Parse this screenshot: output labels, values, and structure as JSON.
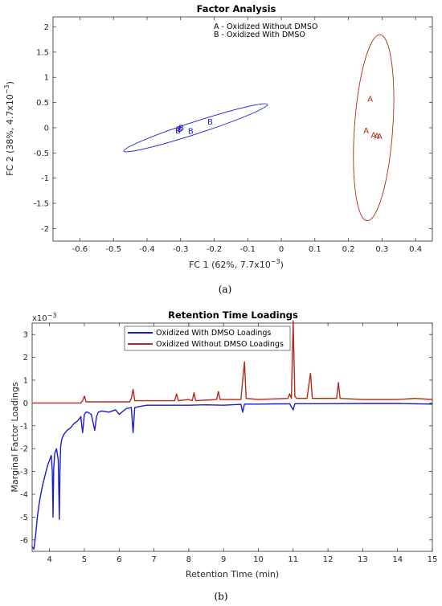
{
  "colors": {
    "series_a": "#b22a1c",
    "series_b": "#1a1ad6",
    "axis": "#262626"
  },
  "chart_data": [
    {
      "type": "scatter",
      "title": "Factor Analysis",
      "xlabel": "FC 1 (62%, 7.7x10",
      "xlabel_exp": "−3",
      "xlabel_end": ")",
      "ylabel": "FC 2 (38%, 4.7x10",
      "ylabel_exp": "−3",
      "ylabel_end": ")",
      "xlim": [
        -0.68,
        0.45
      ],
      "ylim": [
        -2.25,
        2.2
      ],
      "xticks": [
        "-0.6",
        "-0.5",
        "-0.4",
        "-0.3",
        "-0.2",
        "-0.1",
        "0",
        "0.1",
        "0.2",
        "0.3",
        "0.4"
      ],
      "xtick_values": [
        -0.6,
        -0.5,
        -0.4,
        -0.3,
        -0.2,
        -0.1,
        0,
        0.1,
        0.2,
        0.3,
        0.4
      ],
      "yticks": [
        "2",
        "1.5",
        "1",
        "0.5",
        "0",
        "-0.5",
        "-1",
        "-1.5",
        "-2"
      ],
      "ytick_values": [
        2,
        1.5,
        1,
        0.5,
        0,
        -0.5,
        -1,
        -1.5,
        -2
      ],
      "legend": [
        "A - Oxidized Without DMSO",
        "B - Oxidized With DMSO"
      ],
      "legend_placement": "top",
      "series": [
        {
          "name": "A - Oxidized Without DMSO",
          "marker": "A",
          "points": [
            [
              0.265,
              0.58
            ],
            [
              0.253,
              -0.05
            ],
            [
              0.275,
              -0.14
            ],
            [
              0.285,
              -0.15
            ],
            [
              0.293,
              -0.16
            ]
          ],
          "ellipse": {
            "center": [
              0.275,
              0.0
            ],
            "rx": 0.057,
            "ry": 1.85,
            "rotation_deg": -4
          }
        },
        {
          "name": "B - Oxidized With DMSO",
          "marker": "B",
          "points": [
            [
              -0.212,
              0.13
            ],
            [
              -0.298,
              0.01
            ],
            [
              -0.303,
              -0.02
            ],
            [
              -0.308,
              -0.05
            ],
            [
              -0.27,
              -0.06
            ]
          ],
          "ellipse": {
            "center": [
              -0.255,
              0.0
            ],
            "rx": 0.225,
            "ry": 0.22,
            "rotation_deg": 18
          }
        }
      ]
    },
    {
      "type": "line",
      "title": "Retention Time Loadings",
      "xlabel": "Retention Time (min)",
      "ylabel": "Marginal Factor Loadings",
      "exponent_label": "x10",
      "exponent_sup": "−3",
      "xlim": [
        3.5,
        15
      ],
      "ylim": [
        -6.5,
        3.5
      ],
      "xticks": [
        "4",
        "5",
        "6",
        "7",
        "8",
        "9",
        "10",
        "11",
        "12",
        "13",
        "14",
        "15"
      ],
      "xtick_values": [
        4,
        5,
        6,
        7,
        8,
        9,
        10,
        11,
        12,
        13,
        14,
        15
      ],
      "yticks": [
        "3",
        "2",
        "1",
        "0",
        "-1",
        "-2",
        "-3",
        "-4",
        "-5",
        "-6"
      ],
      "ytick_values": [
        3,
        2,
        1,
        0,
        -1,
        -2,
        -3,
        -4,
        -5,
        -6
      ],
      "legend": [
        "Oxidized With DMSO Loadings",
        "Oxidized Without DMSO Loadings"
      ],
      "legend_placement": "top",
      "series": [
        {
          "name": "Oxidized With DMSO Loadings",
          "x": [
            3.5,
            3.55,
            3.6,
            3.65,
            3.7,
            3.75,
            3.8,
            3.85,
            3.9,
            3.95,
            4.0,
            4.05,
            4.08,
            4.1,
            4.12,
            4.15,
            4.2,
            4.25,
            4.28,
            4.3,
            4.32,
            4.35,
            4.4,
            4.5,
            4.6,
            4.7,
            4.8,
            4.9,
            4.95,
            5.0,
            5.05,
            5.1,
            5.2,
            5.3,
            5.35,
            5.4,
            5.5,
            5.7,
            5.9,
            6.0,
            6.2,
            6.35,
            6.4,
            6.45,
            6.6,
            6.8,
            7.0,
            7.5,
            8.0,
            8.5,
            9.0,
            9.5,
            9.55,
            9.6,
            10.0,
            10.5,
            10.9,
            11.0,
            11.05,
            11.5,
            12.0,
            13.0,
            14.0,
            15.0
          ],
          "values": [
            -6.3,
            -6.4,
            -5.8,
            -5.0,
            -4.4,
            -4.0,
            -3.6,
            -3.3,
            -3.0,
            -2.7,
            -2.5,
            -2.3,
            -3.0,
            -5.0,
            -2.9,
            -2.2,
            -2.0,
            -2.5,
            -5.1,
            -3.0,
            -1.9,
            -1.6,
            -1.4,
            -1.2,
            -1.1,
            -0.9,
            -0.8,
            -0.6,
            -1.3,
            -0.5,
            -0.4,
            -0.4,
            -0.5,
            -1.2,
            -0.6,
            -0.4,
            -0.35,
            -0.4,
            -0.3,
            -0.5,
            -0.25,
            -0.2,
            -1.3,
            -0.2,
            -0.15,
            -0.1,
            -0.1,
            -0.1,
            -0.1,
            -0.08,
            -0.1,
            -0.06,
            -0.4,
            -0.05,
            -0.05,
            -0.04,
            -0.04,
            -0.3,
            -0.03,
            -0.03,
            -0.03,
            -0.02,
            -0.02,
            -0.05
          ]
        },
        {
          "name": "Oxidized Without DMSO Loadings",
          "x": [
            3.5,
            4.9,
            4.95,
            5.0,
            5.05,
            5.5,
            6.3,
            6.35,
            6.4,
            6.45,
            7.0,
            7.6,
            7.65,
            7.7,
            8.0,
            8.1,
            8.15,
            8.2,
            8.8,
            8.85,
            8.9,
            9.5,
            9.55,
            9.6,
            9.65,
            10.0,
            10.85,
            10.9,
            10.95,
            11.0,
            11.05,
            11.1,
            11.4,
            11.45,
            11.5,
            11.55,
            12.0,
            12.25,
            12.3,
            12.35,
            13.0,
            14.0,
            14.5,
            15.0
          ],
          "values": [
            0,
            0,
            0.1,
            0.3,
            0.05,
            0.05,
            0.05,
            0.2,
            0.6,
            0.1,
            0.1,
            0.1,
            0.4,
            0.1,
            0.15,
            0.1,
            0.45,
            0.1,
            0.15,
            0.5,
            0.15,
            0.15,
            1.0,
            1.8,
            0.2,
            0.15,
            0.2,
            0.4,
            0.2,
            3.6,
            0.3,
            0.2,
            0.2,
            0.8,
            1.3,
            0.2,
            0.2,
            0.2,
            0.9,
            0.2,
            0.15,
            0.15,
            0.2,
            0.15
          ]
        }
      ]
    }
  ],
  "captions": {
    "a": "(a)",
    "b": "(b)"
  }
}
